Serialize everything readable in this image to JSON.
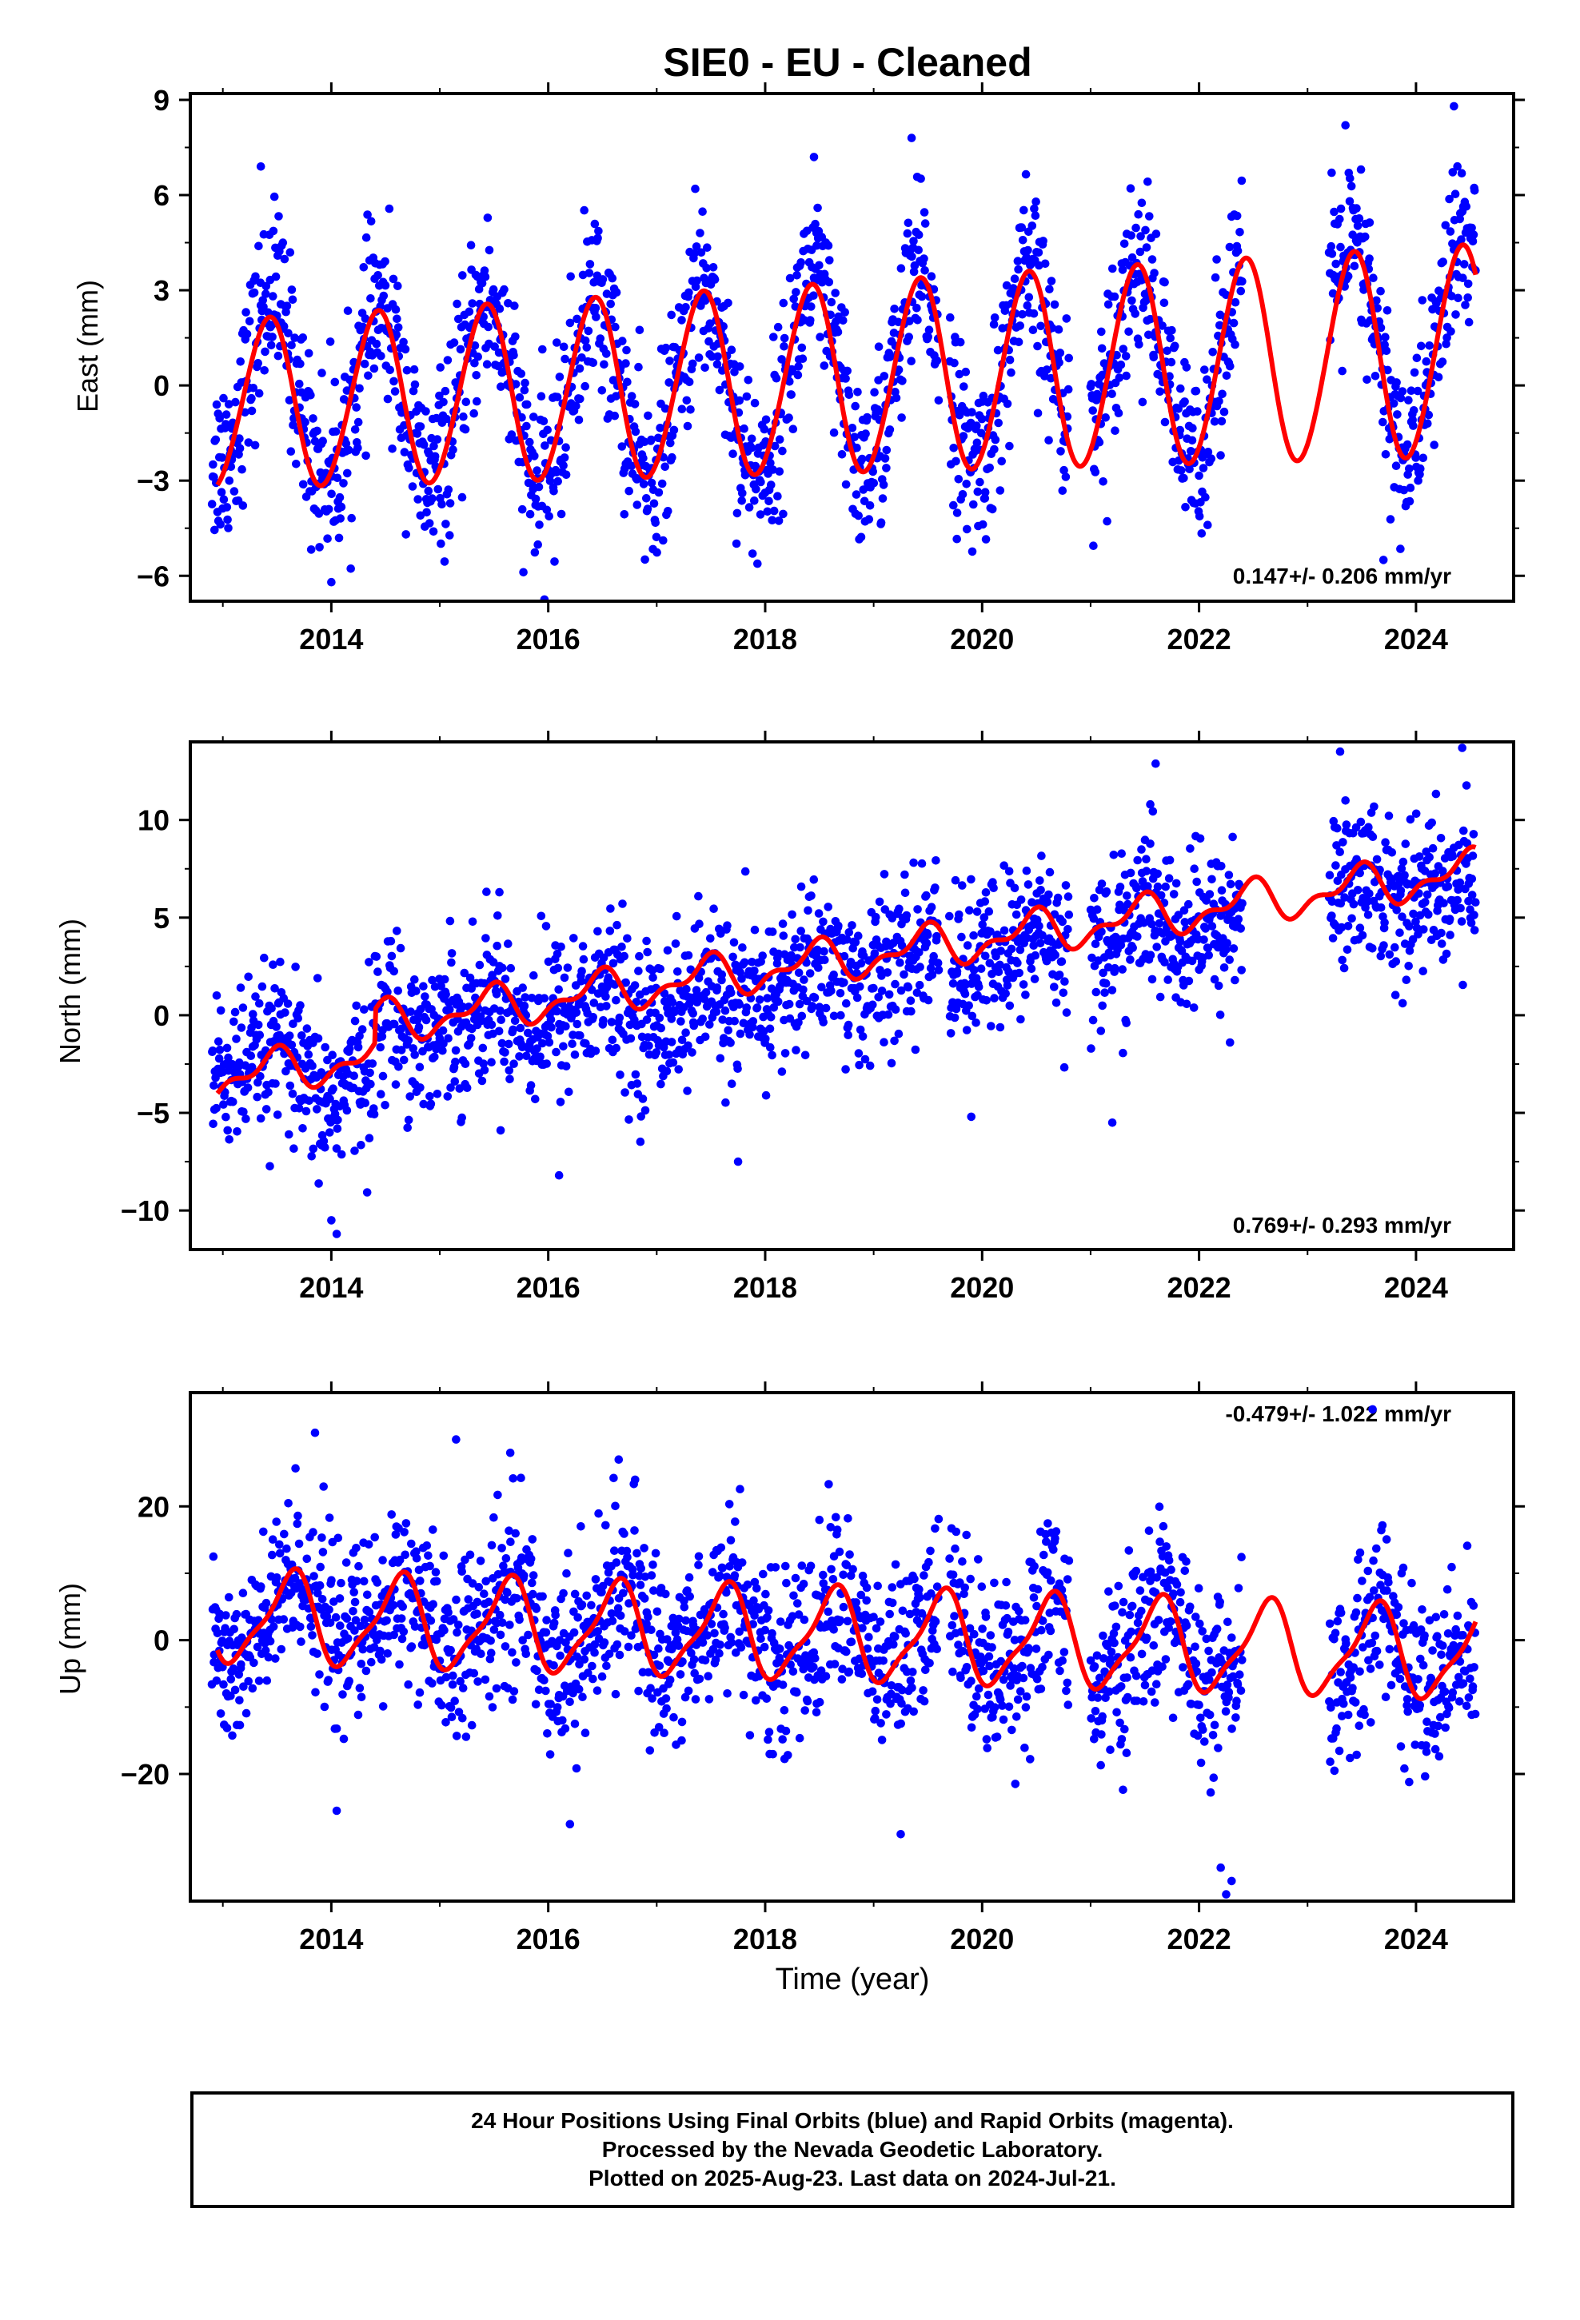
{
  "title": "SIE0  - EU - Cleaned",
  "colors": {
    "final": "#0000ff",
    "rapid": "#ff00ff",
    "model": "#ff0000",
    "axis": "#000000"
  },
  "caption": {
    "line1": "24 Hour Positions Using Final Orbits (blue) and Rapid Orbits (magenta).",
    "line2": "Processed by the Nevada Geodetic Laboratory.",
    "line3": "Plotted on 2025-Aug-23. Last data on 2024-Jul-21."
  },
  "chart_data": [
    {
      "type": "scatter",
      "panel": "east",
      "ylabel": "East (mm)",
      "xlabel": "",
      "xlim": [
        2012.7,
        2024.9
      ],
      "ylim": [
        -6.8,
        9.2
      ],
      "yticks": [
        -6,
        -3,
        0,
        3,
        6,
        9
      ],
      "ytick_labels": [
        "−6",
        "−3",
        "0",
        "3",
        "6",
        "9"
      ],
      "xticks": [
        2014,
        2016,
        2018,
        2020,
        2022,
        2024
      ],
      "xtick_labels": [
        "2014",
        "2016",
        "2018",
        "2020",
        "2022",
        "2024"
      ],
      "rate_label": "0.147+/- 0.206 mm/yr",
      "rate_position": "bottom-right",
      "grid": false,
      "data_segments": [
        [
          2012.9,
          2019.6
        ],
        [
          2019.7,
          2020.8
        ],
        [
          2021.0,
          2022.4
        ],
        [
          2023.2,
          2024.55
        ]
      ],
      "data_x": [
        2012.9,
        2013.1,
        2013.3,
        2013.45,
        2013.6,
        2013.85,
        2014.1,
        2014.4,
        2014.6,
        2014.85,
        2015.1,
        2015.4,
        2015.6,
        2015.9,
        2016.1,
        2016.4,
        2016.6,
        2016.9,
        2017.1,
        2017.4,
        2017.6,
        2017.9,
        2018.1,
        2018.4,
        2018.6,
        2018.9,
        2019.1,
        2019.4,
        2019.6,
        2019.9,
        2020.1,
        2020.4,
        2020.6,
        2021.1,
        2021.4,
        2021.6,
        2021.9,
        2022.1,
        2022.35,
        2023.3,
        2023.45,
        2023.6,
        2023.9,
        2024.1,
        2024.35,
        2024.5
      ],
      "data_y": [
        -0.5,
        -1.8,
        1.5,
        5.0,
        3.0,
        -1.0,
        -3.5,
        2.5,
        1.0,
        -3.0,
        -2.0,
        3.0,
        1.5,
        -4.0,
        -2.5,
        3.0,
        1.0,
        -3.5,
        -2.0,
        3.5,
        1.5,
        -3.0,
        -2.5,
        4.0,
        2.0,
        -3.0,
        -1.5,
        3.5,
        2.0,
        -2.5,
        -2.0,
        3.5,
        1.0,
        0.0,
        4.0,
        2.5,
        -2.0,
        -1.5,
        4.5,
        5.0,
        4.0,
        1.5,
        -2.0,
        0.0,
        4.5,
        5.0
      ],
      "data_spread": 1.4,
      "model": {
        "offset": 0.25,
        "rate": 0.147,
        "ref_year": 2019.0,
        "amp_annual": 3.0,
        "amp_annual_rate": 0.06,
        "phase_peak": 0.42,
        "amp_semi": 0.15,
        "x_start": 2012.95,
        "x_end": 2024.55
      },
      "outliers": [
        [
          2013.35,
          6.9
        ],
        [
          2018.45,
          7.2
        ],
        [
          2019.35,
          7.8
        ],
        [
          2023.35,
          8.2
        ],
        [
          2024.35,
          8.8
        ],
        [
          2023.7,
          -5.5
        ],
        [
          2014.0,
          -6.2
        ]
      ]
    },
    {
      "type": "scatter",
      "panel": "north",
      "ylabel": "North (mm)",
      "xlabel": "",
      "xlim": [
        2012.7,
        2024.9
      ],
      "ylim": [
        -12,
        14
      ],
      "yticks": [
        -10,
        -5,
        0,
        5,
        10
      ],
      "ytick_labels": [
        "−10",
        "−5",
        "0",
        "5",
        "10"
      ],
      "xticks": [
        2014,
        2016,
        2018,
        2020,
        2022,
        2024
      ],
      "xtick_labels": [
        "2014",
        "2016",
        "2018",
        "2020",
        "2022",
        "2024"
      ],
      "rate_label": "0.769+/- 0.293 mm/yr",
      "rate_position": "bottom-right",
      "grid": false,
      "data_segments": [
        [
          2012.9,
          2019.6
        ],
        [
          2019.7,
          2020.8
        ],
        [
          2021.0,
          2022.4
        ],
        [
          2023.2,
          2024.55
        ]
      ],
      "data_x": [
        2012.9,
        2013.2,
        2013.5,
        2013.8,
        2014.0,
        2014.2,
        2014.5,
        2015.0,
        2015.5,
        2016.0,
        2016.5,
        2017.0,
        2017.5,
        2018.0,
        2018.5,
        2019.0,
        2019.5,
        2019.9,
        2020.3,
        2020.7,
        2021.1,
        2021.5,
        2021.9,
        2022.3,
        2023.3,
        2023.7,
        2024.0,
        2024.5
      ],
      "data_y": [
        -1.5,
        -2.5,
        -1.0,
        -5.0,
        -7.0,
        -5.0,
        -1.0,
        -0.5,
        -0.5,
        -1.0,
        -0.5,
        -2.5,
        -2.0,
        -1.0,
        1.5,
        0.5,
        2.0,
        1.5,
        2.0,
        3.5,
        1.0,
        4.5,
        2.5,
        3.5,
        6.0,
        6.0,
        5.5,
        5.0
      ],
      "data_spread": 2.0,
      "model": {
        "offset": 1.4,
        "rate": 0.769,
        "ref_year": 2019.0,
        "amp_annual": 0.9,
        "amp_annual_rate": 0.0,
        "phase_peak": 0.45,
        "amp_semi": 0.5,
        "x_start": 2012.95,
        "x_end": 2024.55,
        "step_at": 2014.4,
        "step_size": 1.7
      },
      "outliers": [
        [
          2015.55,
          6.3
        ],
        [
          2021.55,
          10.8
        ],
        [
          2023.3,
          13.5
        ],
        [
          2023.35,
          11.0
        ],
        [
          2014.05,
          -11.2
        ],
        [
          2014.0,
          -10.5
        ],
        [
          2021.2,
          -5.5
        ],
        [
          2019.9,
          -5.2
        ],
        [
          2017.75,
          -7.5
        ],
        [
          2016.1,
          -8.2
        ]
      ]
    },
    {
      "type": "scatter",
      "panel": "up",
      "ylabel": "Up (mm)",
      "xlabel": "Time (year)",
      "xlim": [
        2012.7,
        2024.9
      ],
      "ylim": [
        -39,
        37
      ],
      "yticks": [
        -20,
        0,
        20
      ],
      "ytick_labels": [
        "−20",
        "0",
        "20"
      ],
      "xticks": [
        2014,
        2016,
        2018,
        2020,
        2022,
        2024
      ],
      "xtick_labels": [
        "2014",
        "2016",
        "2018",
        "2020",
        "2022",
        "2024"
      ],
      "rate_label": "-0.479+/- 1.022 mm/yr",
      "rate_position": "top-right",
      "grid": false,
      "data_segments": [
        [
          2012.9,
          2019.6
        ],
        [
          2019.7,
          2020.8
        ],
        [
          2021.0,
          2022.4
        ],
        [
          2023.2,
          2024.55
        ]
      ],
      "data_x": [
        2012.9,
        2013.2,
        2013.5,
        2013.85,
        2014.1,
        2014.4,
        2014.7,
        2015.1,
        2015.4,
        2015.7,
        2016.1,
        2016.4,
        2016.7,
        2017.1,
        2017.4,
        2017.7,
        2018.1,
        2018.4,
        2018.7,
        2019.1,
        2019.4,
        2019.7,
        2020.1,
        2020.4,
        2020.7,
        2021.1,
        2021.4,
        2021.7,
        2022.1,
        2022.3,
        2023.3,
        2023.6,
        2023.9,
        2024.2,
        2024.5
      ],
      "data_y": [
        -2,
        -6,
        3,
        14,
        8,
        0,
        6,
        0,
        -2,
        8,
        0,
        -4,
        10,
        2,
        -3,
        8,
        0,
        -5,
        6,
        -2,
        -4,
        8,
        0,
        -5,
        6,
        -8,
        -4,
        6,
        -8,
        -14,
        -15,
        6,
        -3,
        -8,
        -6
      ],
      "data_spread": 6.5,
      "model": {
        "offset": 0.5,
        "rate": -0.479,
        "ref_year": 2019.0,
        "amp_annual": 6.5,
        "amp_annual_rate": 0.0,
        "phase_peak": 0.62,
        "amp_semi": 1.8,
        "x_start": 2012.95,
        "x_end": 2024.55
      },
      "outliers": [
        [
          2013.85,
          31
        ],
        [
          2015.15,
          30
        ],
        [
          2015.65,
          28
        ],
        [
          2016.65,
          27
        ],
        [
          2023.6,
          34.5
        ],
        [
          2014.05,
          -25.5
        ],
        [
          2016.2,
          -27.5
        ],
        [
          2019.25,
          -29
        ],
        [
          2022.2,
          -34
        ],
        [
          2022.25,
          -38
        ],
        [
          2022.3,
          -36
        ]
      ]
    }
  ]
}
